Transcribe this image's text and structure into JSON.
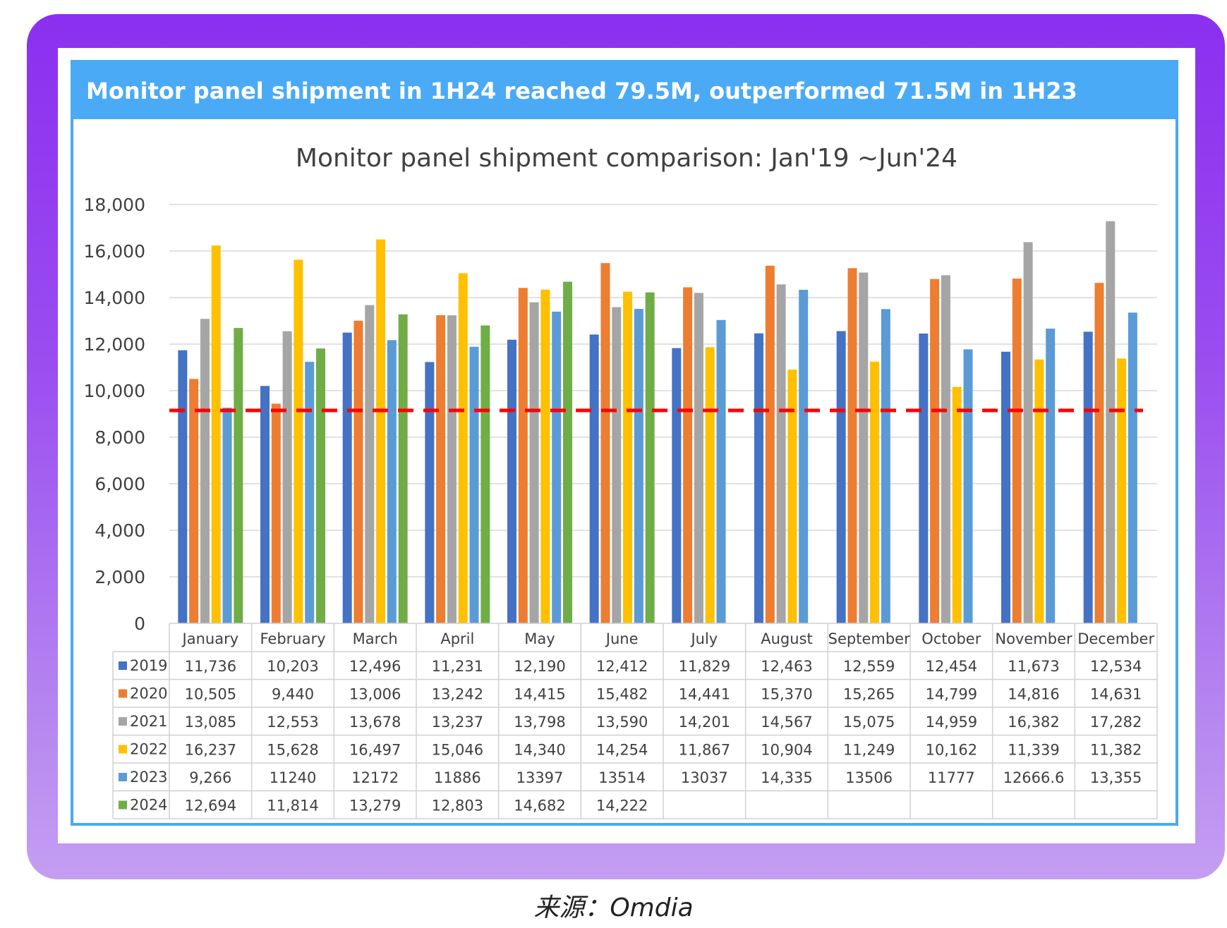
{
  "banner": {
    "title": "Monitor panel shipment in 1H24 reached 79.5M, outperformed 71.5M in 1H23"
  },
  "source_note": "来源：Omdia",
  "colors": {
    "frame": "#8b2ff0",
    "banner": "#4aaaf6",
    "threshold_line": "#ff0000"
  },
  "chart_data": {
    "type": "bar",
    "title": "Monitor panel shipment comparison: Jan'19 ~Jun'24",
    "xlabel": "",
    "ylabel": "",
    "ylim": [
      0,
      18000
    ],
    "yticks": [
      "18,000",
      "16,000",
      "14,000",
      "12,000",
      "10,000",
      "8,000",
      "6,000",
      "4,000",
      "2,000",
      "0"
    ],
    "ytick_values": [
      18000,
      16000,
      14000,
      12000,
      10000,
      8000,
      6000,
      4000,
      2000,
      0
    ],
    "grid": true,
    "reference_line": 9150,
    "categories": [
      "January",
      "February",
      "March",
      "April",
      "May",
      "June",
      "July",
      "August",
      "September",
      "October",
      "November",
      "December"
    ],
    "series": [
      {
        "name": "2019",
        "color": "#4472c4",
        "values": [
          11736,
          10203,
          12496,
          11231,
          12190,
          12412,
          11829,
          12463,
          12559,
          12454,
          11673,
          12534
        ],
        "labels": [
          "11,736",
          "10,203",
          "12,496",
          "11,231",
          "12,190",
          "12,412",
          "11,829",
          "12,463",
          "12,559",
          "12,454",
          "11,673",
          "12,534"
        ]
      },
      {
        "name": "2020",
        "color": "#ed7d31",
        "values": [
          10505,
          9440,
          13006,
          13242,
          14415,
          15482,
          14441,
          15370,
          15265,
          14799,
          14816,
          14631
        ],
        "labels": [
          "10,505",
          "9,440",
          "13,006",
          "13,242",
          "14,415",
          "15,482",
          "14,441",
          "15,370",
          "15,265",
          "14,799",
          "14,816",
          "14,631"
        ]
      },
      {
        "name": "2021",
        "color": "#a5a5a5",
        "values": [
          13085,
          12553,
          13678,
          13237,
          13798,
          13590,
          14201,
          14567,
          15075,
          14959,
          16382,
          17282
        ],
        "labels": [
          "13,085",
          "12,553",
          "13,678",
          "13,237",
          "13,798",
          "13,590",
          "14,201",
          "14,567",
          "15,075",
          "14,959",
          "16,382",
          "17,282"
        ]
      },
      {
        "name": "2022",
        "color": "#ffc000",
        "values": [
          16237,
          15628,
          16497,
          15046,
          14340,
          14254,
          11867,
          10904,
          11249,
          10162,
          11339,
          11382
        ],
        "labels": [
          "16,237",
          "15,628",
          "16,497",
          "15,046",
          "14,340",
          "14,254",
          "11,867",
          "10,904",
          "11,249",
          "10,162",
          "11,339",
          "11,382"
        ]
      },
      {
        "name": "2023",
        "color": "#5b9bd5",
        "values": [
          9266,
          11240,
          12172,
          11886,
          13397,
          13514,
          13037,
          14335,
          13506,
          11777,
          12666.6,
          13355
        ],
        "labels": [
          "9,266",
          "11240",
          "12172",
          "11886",
          "13397",
          "13514",
          "13037",
          "14,335",
          "13506",
          "11777",
          "12666.6",
          "13,355"
        ]
      },
      {
        "name": "2024",
        "color": "#70ad47",
        "values": [
          12694,
          11814,
          13279,
          12803,
          14682,
          14222,
          null,
          null,
          null,
          null,
          null,
          null
        ],
        "labels": [
          "12,694",
          "11,814",
          "13,279",
          "12,803",
          "14,682",
          "14,222",
          "",
          "",
          "",
          "",
          "",
          ""
        ]
      }
    ]
  }
}
